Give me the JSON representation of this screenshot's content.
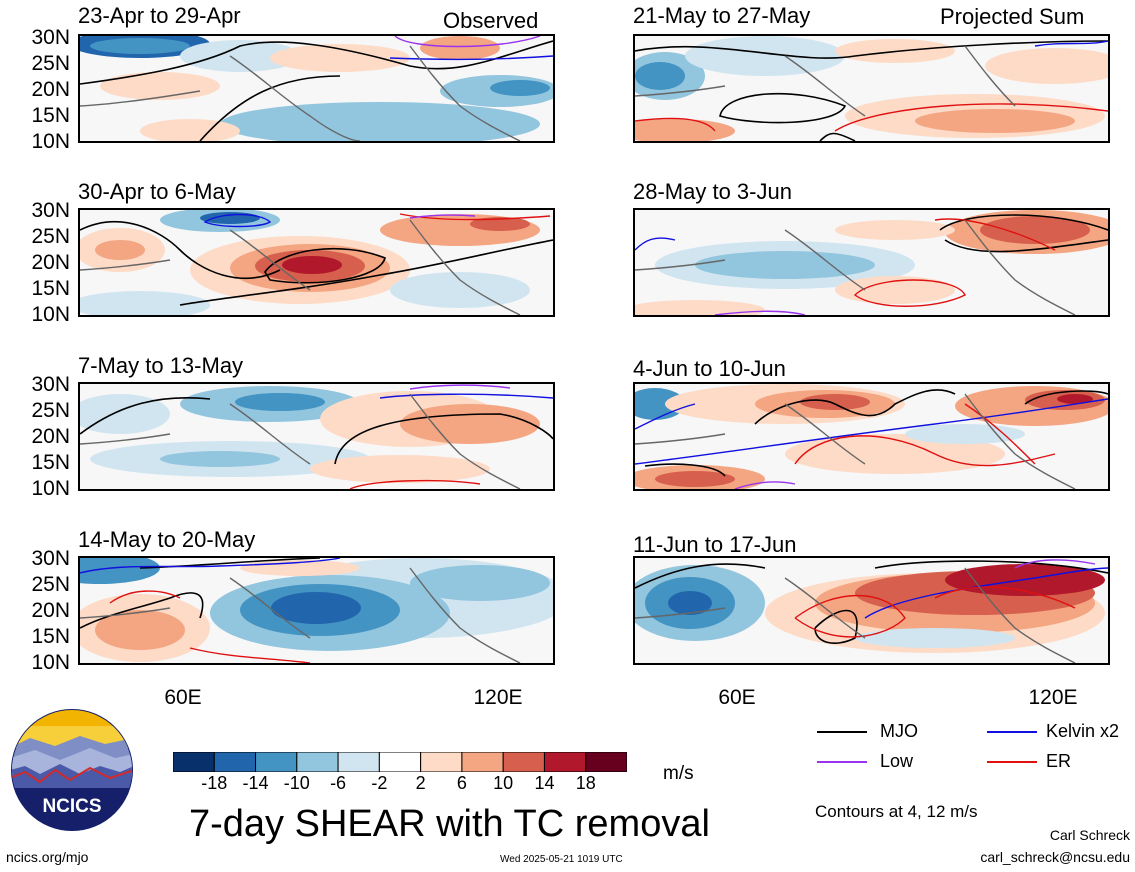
{
  "corner_labels": {
    "left": "Observed",
    "right": "Projected Sum"
  },
  "panels": [
    {
      "title": "23-Apr to 29-Apr"
    },
    {
      "title": "30-Apr to 6-May"
    },
    {
      "title": "7-May to 13-May"
    },
    {
      "title": "14-May to 20-May"
    },
    {
      "title": "21-May to 27-May"
    },
    {
      "title": "28-May to 3-Jun"
    },
    {
      "title": "4-Jun to 10-Jun"
    },
    {
      "title": "11-Jun to 17-Jun"
    }
  ],
  "lat_labels": [
    "30N",
    "25N",
    "20N",
    "15N",
    "10N"
  ],
  "lon_labels": [
    "60E",
    "120E"
  ],
  "colorbar": {
    "labels": [
      "-18",
      "-14",
      "-10",
      "-6",
      "-2",
      "2",
      "6",
      "10",
      "14",
      "18"
    ],
    "colors": [
      "#08306b",
      "#2166ac",
      "#4393c3",
      "#92c5de",
      "#d1e5f0",
      "#ffffff",
      "#fddbc7",
      "#f4a582",
      "#d6604d",
      "#b2182b",
      "#67001f"
    ],
    "unit": "m/s"
  },
  "legend": {
    "items": [
      {
        "label": "MJO",
        "color": "#000000"
      },
      {
        "label": "Kelvin x2",
        "color": "#1010e0"
      },
      {
        "label": "Low",
        "color": "#9933ee"
      },
      {
        "label": "ER",
        "color": "#e01010"
      }
    ],
    "note": "Contours at 4, 12 m/s"
  },
  "main_title": "7-day SHEAR with TC removal",
  "logo": {
    "text": "NCICS"
  },
  "footer": {
    "url": "ncics.org/mjo",
    "timestamp": "Wed 2025-05-21 1019 UTC",
    "author": "Carl Schreck",
    "email": "carl_schreck@ncsu.edu"
  }
}
